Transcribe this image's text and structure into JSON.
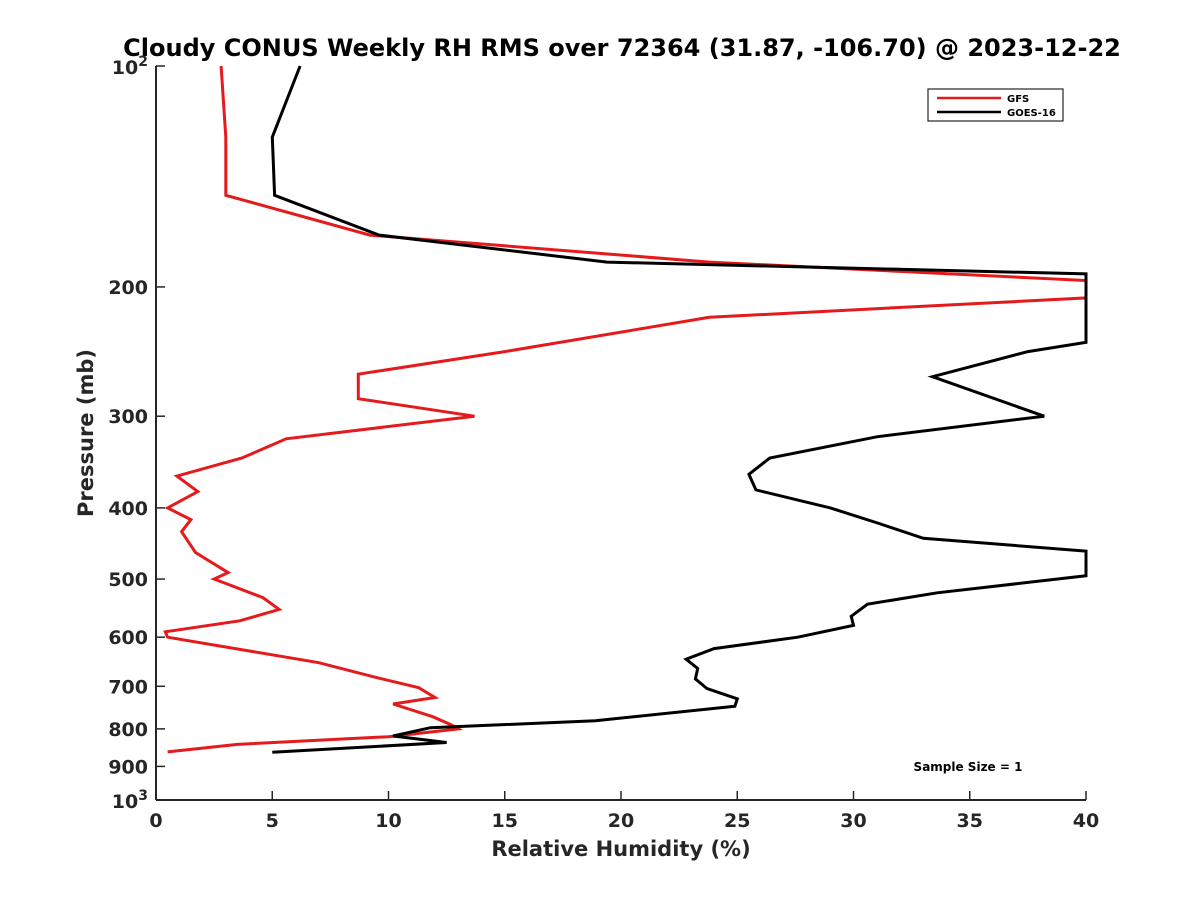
{
  "chart_data": {
    "type": "line",
    "title": "Cloudy CONUS Weekly RH RMS over 72364 (31.87, -106.70) @ 2023-12-22",
    "xlabel": "Relative Humidity (%)",
    "ylabel": "Pressure (mb)",
    "xlim": [
      0,
      40
    ],
    "ylim": [
      100,
      1000
    ],
    "y_scale": "log",
    "y_reversed": true,
    "grid": false,
    "legend_position": "top-right",
    "x_ticks": [
      0,
      5,
      10,
      15,
      20,
      25,
      30,
      35,
      40
    ],
    "y_ticks": [
      {
        "value": 100,
        "base": "10",
        "exp": "2"
      },
      {
        "value": 200,
        "label": "200"
      },
      {
        "value": 300,
        "label": "300"
      },
      {
        "value": 400,
        "label": "400"
      },
      {
        "value": 500,
        "label": "500"
      },
      {
        "value": 600,
        "label": "600"
      },
      {
        "value": 700,
        "label": "700"
      },
      {
        "value": 800,
        "label": "800"
      },
      {
        "value": 900,
        "label": "900"
      },
      {
        "value": 1000,
        "base": "10",
        "exp": "3"
      }
    ],
    "annotation": "Sample Size = 1",
    "series": [
      {
        "name": "GFS",
        "color": "#e41a1c",
        "points": [
          [
            2.8,
            100
          ],
          [
            3.0,
            125
          ],
          [
            3.0,
            150
          ],
          [
            9.2,
            170
          ],
          [
            23.8,
            185
          ],
          [
            40,
            196
          ],
          [
            40,
            207
          ],
          [
            23.8,
            220
          ],
          [
            15.0,
            245
          ],
          [
            8.7,
            263
          ],
          [
            8.7,
            284
          ],
          [
            13.7,
            300
          ],
          [
            5.6,
            322
          ],
          [
            3.7,
            342
          ],
          [
            0.9,
            362
          ],
          [
            1.8,
            380
          ],
          [
            0.5,
            400
          ],
          [
            1.5,
            415
          ],
          [
            1.1,
            431
          ],
          [
            1.7,
            460
          ],
          [
            3.1,
            490
          ],
          [
            2.5,
            500
          ],
          [
            4.6,
            530
          ],
          [
            5.3,
            550
          ],
          [
            3.6,
            570
          ],
          [
            0.4,
            590
          ],
          [
            0.5,
            600
          ],
          [
            7.0,
            650
          ],
          [
            9.4,
            680
          ],
          [
            11.3,
            703
          ],
          [
            12.0,
            725
          ],
          [
            10.2,
            740
          ],
          [
            11.9,
            770
          ],
          [
            12.7,
            790
          ],
          [
            13.0,
            800
          ],
          [
            10.0,
            820
          ],
          [
            3.5,
            840
          ],
          [
            0.5,
            860
          ]
        ]
      },
      {
        "name": "GOES-16",
        "color": "#000000",
        "points": [
          [
            6.2,
            100
          ],
          [
            5.0,
            125
          ],
          [
            5.1,
            150
          ],
          [
            9.6,
            170
          ],
          [
            19.4,
            185
          ],
          [
            40,
            192
          ],
          [
            40,
            238
          ],
          [
            37.5,
            245
          ],
          [
            33.4,
            265
          ],
          [
            38.2,
            300
          ],
          [
            31.0,
            320
          ],
          [
            26.4,
            342
          ],
          [
            25.5,
            360
          ],
          [
            25.8,
            378
          ],
          [
            29.0,
            400
          ],
          [
            31.1,
            420
          ],
          [
            33.0,
            440
          ],
          [
            40,
            458
          ],
          [
            40,
            495
          ],
          [
            33.6,
            522
          ],
          [
            30.6,
            541
          ],
          [
            29.9,
            562
          ],
          [
            30.0,
            578
          ],
          [
            27.6,
            600
          ],
          [
            24.0,
            622
          ],
          [
            22.8,
            643
          ],
          [
            23.3,
            662
          ],
          [
            23.2,
            684
          ],
          [
            23.7,
            705
          ],
          [
            25.0,
            728
          ],
          [
            24.9,
            745
          ],
          [
            18.9,
            780
          ],
          [
            11.8,
            797
          ],
          [
            10.2,
            818
          ],
          [
            12.5,
            835
          ],
          [
            5.0,
            861
          ]
        ]
      }
    ]
  }
}
